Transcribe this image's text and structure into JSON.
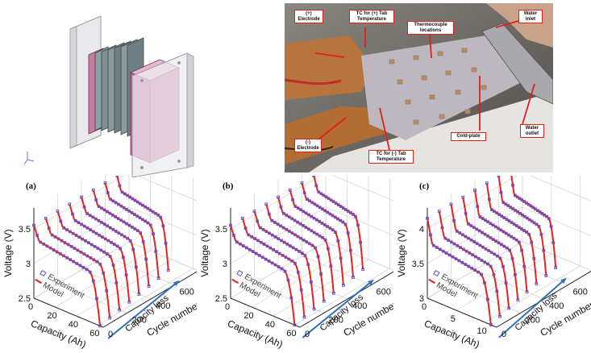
{
  "photo": {
    "callouts": [
      {
        "id": "pos-electrode",
        "text": "(+)\nElectrode"
      },
      {
        "id": "tc-pos",
        "text": "TC for (+) Tab\nTemperature"
      },
      {
        "id": "thermo",
        "text": "Thermocouple\nlocations"
      },
      {
        "id": "water-inlet",
        "text": "Water\ninlet"
      },
      {
        "id": "cold-plate",
        "text": "Cold-plate"
      },
      {
        "id": "water-outlet",
        "text": "Water\noutlet"
      },
      {
        "id": "neg-electrode",
        "text": "(-)\nElectrode"
      },
      {
        "id": "tc-neg",
        "text": "TC for (-) Tab\nTemperature"
      }
    ]
  },
  "colors": {
    "model": "#e8231c",
    "experiment": "#5a4fd6",
    "arrow": "#2f6fbf",
    "grid": "#d6d6d6"
  },
  "chart_data": [
    {
      "type": "line",
      "panel": "(a)",
      "xlabel": "Capacity (Ah)",
      "ylabel": "Voltage (V)",
      "zlabel": "Cycle number",
      "capacity_ticks": [
        "0",
        "20",
        "40",
        "60"
      ],
      "voltage_ticks": [
        "2.5",
        "3",
        "3.5"
      ],
      "cycle_ticks": [
        "0",
        "200",
        "400",
        "600",
        "800"
      ],
      "capacity_range": [
        0,
        65
      ],
      "voltage_range": [
        2.5,
        3.8
      ],
      "cycle_range": [
        0,
        800
      ],
      "cycles": [
        0,
        100,
        200,
        300,
        400,
        500,
        600,
        700
      ],
      "capacity_max": [
        62,
        60,
        58,
        56,
        54,
        52,
        50,
        48
      ],
      "v_start": 3.55,
      "v_plateau": 3.3,
      "v_end": 2.5,
      "annotation": "Capacity loss",
      "legend": [
        "Experiment",
        "Model"
      ]
    },
    {
      "type": "line",
      "panel": "(b)",
      "xlabel": "Capacity (Ah)",
      "ylabel": "Voltage (V)",
      "zlabel": "Cycle number",
      "capacity_ticks": [
        "0",
        "20",
        "40",
        "60"
      ],
      "voltage_ticks": [
        "2.5",
        "3",
        "3.5"
      ],
      "cycle_ticks": [
        "0",
        "200",
        "400",
        "600",
        "800"
      ],
      "capacity_range": [
        0,
        65
      ],
      "voltage_range": [
        2.5,
        3.8
      ],
      "cycle_range": [
        0,
        800
      ],
      "cycles": [
        0,
        100,
        200,
        300,
        400,
        500,
        600,
        700
      ],
      "capacity_max": [
        60,
        58,
        56,
        54,
        52,
        50,
        48,
        46
      ],
      "v_start": 3.55,
      "v_plateau": 3.3,
      "v_end": 2.5,
      "annotation": "Capacity loss",
      "legend": [
        "Experiment",
        "Model"
      ]
    },
    {
      "type": "line",
      "panel": "(c)",
      "xlabel": "Capacity (Ah)",
      "ylabel": "Voltage (V)",
      "zlabel": "Cycle number",
      "capacity_ticks": [
        "0",
        "5",
        "10"
      ],
      "voltage_ticks": [
        "3",
        "3.5",
        "4"
      ],
      "cycle_ticks": [
        "0",
        "200",
        "400",
        "600",
        "800"
      ],
      "capacity_range": [
        0,
        12
      ],
      "voltage_range": [
        3.0,
        4.3
      ],
      "cycle_range": [
        0,
        800
      ],
      "cycles": [
        0,
        100,
        200,
        300,
        400,
        500,
        600,
        700
      ],
      "capacity_max": [
        11,
        10.5,
        10,
        9.5,
        9,
        8.6,
        8.2,
        7.8
      ],
      "v_start": 4.15,
      "v_plateau": 3.75,
      "v_end": 3.0,
      "annotation": "Capacity loss",
      "legend": [
        "Experiment",
        "Model"
      ]
    }
  ]
}
